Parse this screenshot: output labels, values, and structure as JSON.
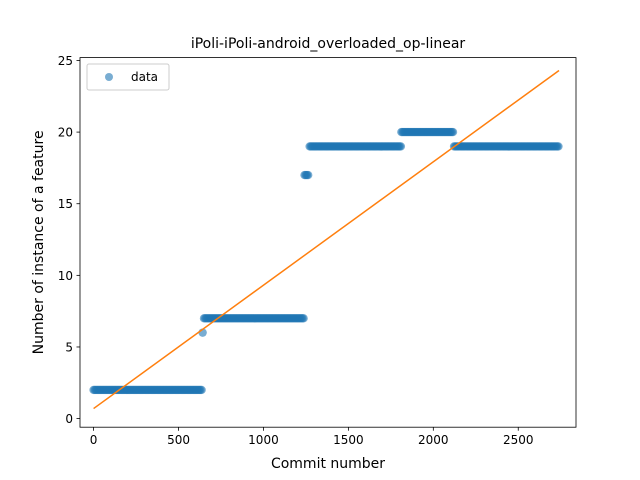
{
  "chart_data": {
    "type": "scatter",
    "title": "iPoli-iPoli-android_overloaded_op-linear",
    "xlabel": "Commit number",
    "ylabel": "Number of instance of a feature",
    "xlim": [
      -80,
      2840
    ],
    "ylim": [
      -0.6,
      25.2
    ],
    "xticks": [
      0,
      500,
      1000,
      1500,
      2000,
      2500
    ],
    "yticks": [
      0,
      5,
      10,
      15,
      20,
      25
    ],
    "grid": false,
    "legend": {
      "placement": "top-left",
      "entries": [
        "data"
      ]
    },
    "colors": {
      "data": "#1f77b4",
      "fit": "#ff7f0e"
    },
    "series": [
      {
        "name": "data",
        "kind": "points",
        "segments": [
          {
            "x_start": 0,
            "x_end": 640,
            "y": 2
          },
          {
            "x_start": 642,
            "x_end": 648,
            "y": 6
          },
          {
            "x_start": 650,
            "x_end": 1240,
            "y": 7
          },
          {
            "x_start": 1242,
            "x_end": 1270,
            "y": 17
          },
          {
            "x_start": 1272,
            "x_end": 1810,
            "y": 19
          },
          {
            "x_start": 1812,
            "x_end": 2120,
            "y": 20
          },
          {
            "x_start": 2122,
            "x_end": 2740,
            "y": 19
          }
        ]
      },
      {
        "kind": "line",
        "x": [
          0,
          2740
        ],
        "y": [
          0.7,
          24.3
        ]
      }
    ]
  }
}
